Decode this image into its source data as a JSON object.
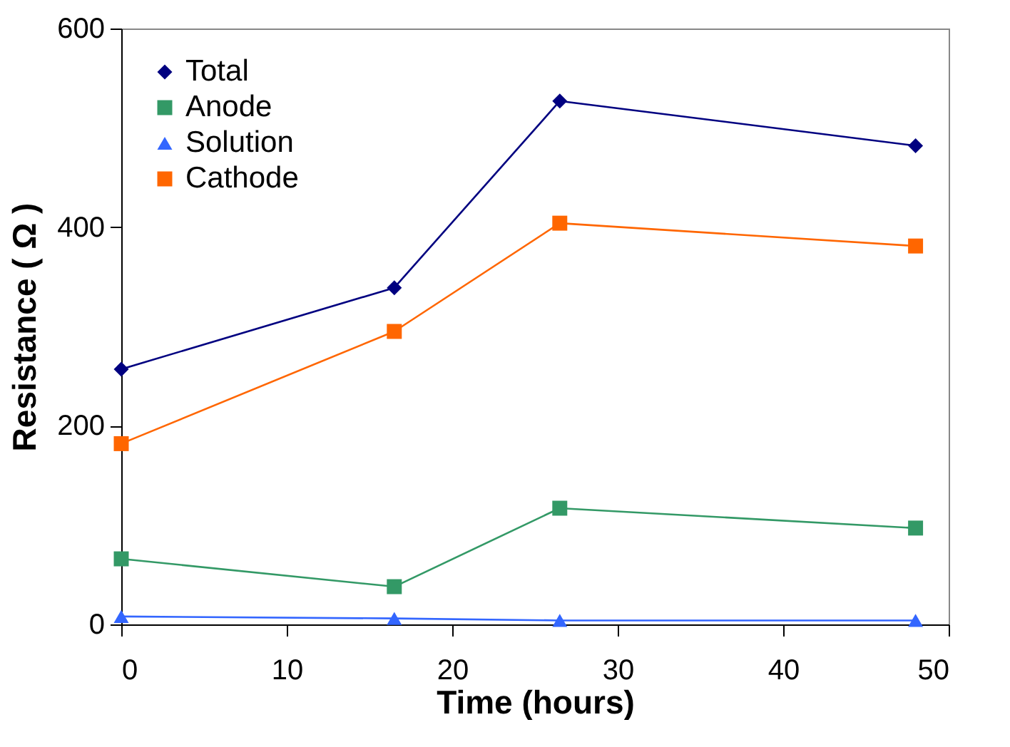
{
  "chart_data": {
    "type": "line",
    "xlabel": "Time (hours)",
    "ylabel": "Resistance ( Ω )",
    "x": [
      0,
      16.5,
      26.5,
      48
    ],
    "xlim": [
      0,
      50
    ],
    "xticks": [
      0,
      10,
      20,
      30,
      40,
      50
    ],
    "ylim": [
      0,
      600
    ],
    "yticks": [
      0,
      200,
      400,
      600
    ],
    "grid": false,
    "legend": "top left",
    "line_style": "solid",
    "series": [
      {
        "name": "Total",
        "color": "#000080",
        "marker": "diamond",
        "values": [
          257,
          339,
          527,
          482
        ]
      },
      {
        "name": "Anode",
        "color": "#339966",
        "marker": "square",
        "values": [
          66,
          38,
          117,
          97
        ]
      },
      {
        "name": "Solution",
        "color": "#3366ff",
        "marker": "triangle",
        "values": [
          8,
          6,
          4,
          4
        ]
      },
      {
        "name": "Cathode",
        "color": "#ff6600",
        "marker": "square",
        "values": [
          182,
          295,
          404,
          381
        ]
      }
    ]
  }
}
